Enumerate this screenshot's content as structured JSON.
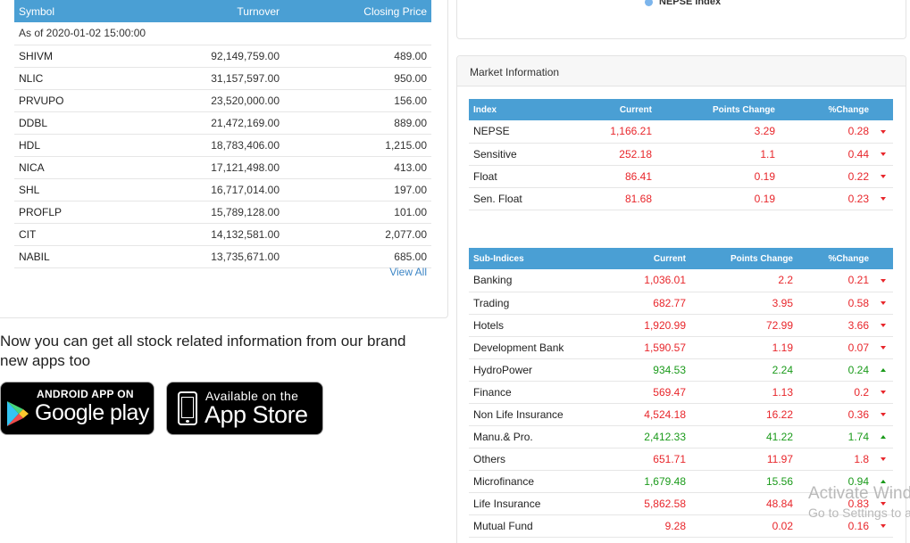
{
  "turnover": {
    "headers": [
      "Symbol",
      "Turnover",
      "Closing Price"
    ],
    "as_of": "As of 2020-01-02 15:00:00",
    "rows": [
      {
        "symbol": "SHIVM",
        "turnover": "92,149,759.00",
        "close": "489.00"
      },
      {
        "symbol": "NLIC",
        "turnover": "31,157,597.00",
        "close": "950.00"
      },
      {
        "symbol": "PRVUPO",
        "turnover": "23,520,000.00",
        "close": "156.00"
      },
      {
        "symbol": "DDBL",
        "turnover": "21,472,169.00",
        "close": "889.00"
      },
      {
        "symbol": "HDL",
        "turnover": "18,783,406.00",
        "close": "1,215.00"
      },
      {
        "symbol": "NICA",
        "turnover": "17,121,498.00",
        "close": "413.00"
      },
      {
        "symbol": "SHL",
        "turnover": "16,717,014.00",
        "close": "197.00"
      },
      {
        "symbol": "PROFLP",
        "turnover": "15,789,128.00",
        "close": "101.00"
      },
      {
        "symbol": "CIT",
        "turnover": "14,132,581.00",
        "close": "2,077.00"
      },
      {
        "symbol": "NABIL",
        "turnover": "13,735,671.00",
        "close": "685.00"
      }
    ],
    "view_all": "View All"
  },
  "apps": {
    "text": "Now you can get all stock related information from our brand new apps too",
    "google_small": "ANDROID APP ON",
    "google_big": "Google play",
    "apple_small": "Available on the",
    "apple_big": "App Store"
  },
  "chart_legend": {
    "label": "NEPSE Index",
    "color": "#7cb5ec"
  },
  "market": {
    "title": "Market Information",
    "index_headers": [
      "Index",
      "Current",
      "Points Change",
      "%Change"
    ],
    "indices": [
      {
        "name": "NEPSE",
        "current": "1,166.21",
        "points": "3.29",
        "pct": "0.28",
        "dir": "down"
      },
      {
        "name": "Sensitive",
        "current": "252.18",
        "points": "1.1",
        "pct": "0.44",
        "dir": "down"
      },
      {
        "name": "Float",
        "current": "86.41",
        "points": "0.19",
        "pct": "0.22",
        "dir": "down"
      },
      {
        "name": "Sen. Float",
        "current": "81.68",
        "points": "0.19",
        "pct": "0.23",
        "dir": "down"
      }
    ],
    "sub_headers": [
      "Sub-Indices",
      "Current",
      "Points Change",
      "%Change"
    ],
    "sub_indices": [
      {
        "name": "Banking",
        "current": "1,036.01",
        "points": "2.2",
        "pct": "0.21",
        "dir": "down"
      },
      {
        "name": "Trading",
        "current": "682.77",
        "points": "3.95",
        "pct": "0.58",
        "dir": "down"
      },
      {
        "name": "Hotels",
        "current": "1,920.99",
        "points": "72.99",
        "pct": "3.66",
        "dir": "down"
      },
      {
        "name": "Development Bank",
        "current": "1,590.57",
        "points": "1.19",
        "pct": "0.07",
        "dir": "down"
      },
      {
        "name": "HydroPower",
        "current": "934.53",
        "points": "2.24",
        "pct": "0.24",
        "dir": "up"
      },
      {
        "name": "Finance",
        "current": "569.47",
        "points": "1.13",
        "pct": "0.2",
        "dir": "down"
      },
      {
        "name": "Non Life Insurance",
        "current": "4,524.18",
        "points": "16.22",
        "pct": "0.36",
        "dir": "down"
      },
      {
        "name": "Manu.& Pro.",
        "current": "2,412.33",
        "points": "41.22",
        "pct": "1.74",
        "dir": "up"
      },
      {
        "name": "Others",
        "current": "651.71",
        "points": "11.97",
        "pct": "1.8",
        "dir": "down"
      },
      {
        "name": "Microfinance",
        "current": "1,679.48",
        "points": "15.56",
        "pct": "0.94",
        "dir": "up"
      },
      {
        "name": "Life Insurance",
        "current": "5,862.58",
        "points": "48.84",
        "pct": "0.83",
        "dir": "down"
      },
      {
        "name": "Mutual Fund",
        "current": "9.28",
        "points": "0.02",
        "pct": "0.16",
        "dir": "down"
      }
    ]
  },
  "watermark": {
    "line1": "Activate Windows",
    "line2": "Go to Settings to activate Windows."
  }
}
